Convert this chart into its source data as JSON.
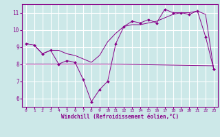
{
  "xlabel": "Windchill (Refroidissement éolien,°C)",
  "bg_color": "#cce8e8",
  "line_color": "#880088",
  "grid_color": "#ffffff",
  "xlim": [
    -0.5,
    23.5
  ],
  "ylim": [
    5.5,
    11.5
  ],
  "xticks": [
    0,
    1,
    2,
    3,
    4,
    5,
    6,
    7,
    8,
    9,
    10,
    11,
    12,
    13,
    14,
    15,
    16,
    17,
    18,
    19,
    20,
    21,
    22,
    23
  ],
  "yticks": [
    6,
    7,
    8,
    9,
    10,
    11
  ],
  "line1_x": [
    0,
    1,
    2,
    3,
    4,
    5,
    6,
    7,
    8,
    9,
    10,
    11,
    12,
    13,
    14,
    15,
    16,
    17,
    18,
    19,
    20,
    21,
    22,
    23
  ],
  "line1_y": [
    9.2,
    9.1,
    8.6,
    8.8,
    8.0,
    8.2,
    8.1,
    7.1,
    5.8,
    6.5,
    7.0,
    9.2,
    10.2,
    10.5,
    10.4,
    10.6,
    10.4,
    11.2,
    11.0,
    11.0,
    10.9,
    11.1,
    9.6,
    7.7
  ],
  "line2_x": [
    0,
    1,
    2,
    3,
    4,
    5,
    6,
    7,
    8,
    9,
    10,
    11,
    12,
    13,
    14,
    15,
    16,
    17,
    18,
    19,
    20,
    21,
    22,
    23
  ],
  "line2_y": [
    9.2,
    9.1,
    8.6,
    8.8,
    8.8,
    8.6,
    8.5,
    8.3,
    8.1,
    8.5,
    9.3,
    9.8,
    10.2,
    10.3,
    10.3,
    10.4,
    10.5,
    10.7,
    10.9,
    11.0,
    11.0,
    11.1,
    10.9,
    7.7
  ],
  "line3_x": [
    0,
    3,
    10,
    23
  ],
  "line3_y": [
    8.0,
    8.0,
    8.0,
    7.9
  ]
}
